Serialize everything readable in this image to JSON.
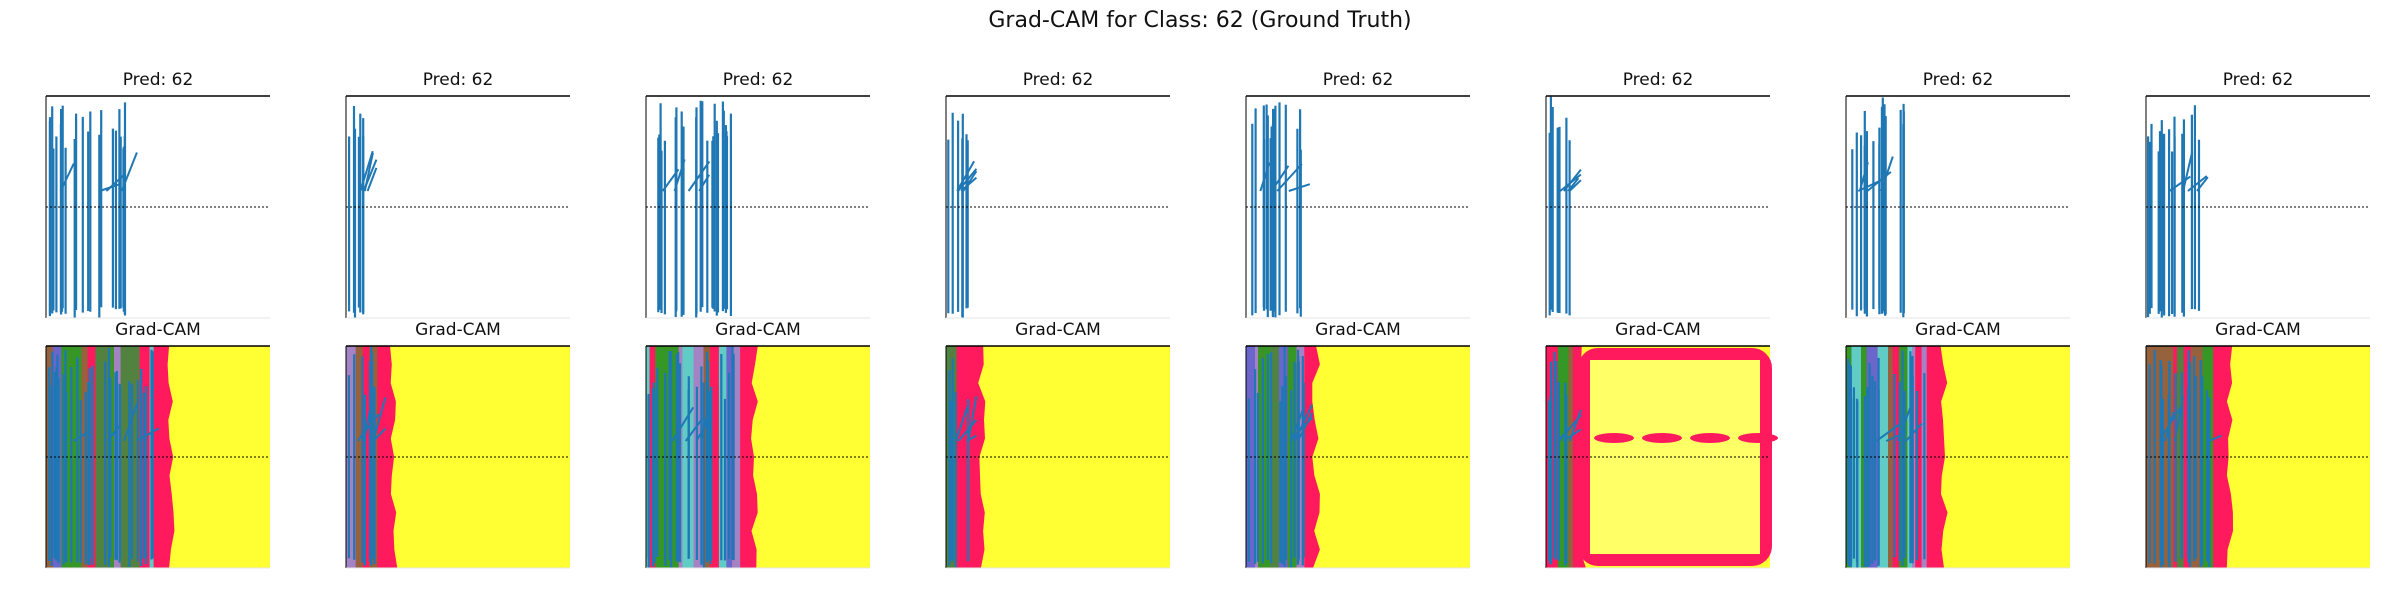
{
  "title": "Grad-CAM for Class: 62 (Ground Truth)",
  "colors": {
    "signal": "#1f77b4",
    "cam_high": "#ffff33",
    "cam_mid": "#ff1a5e",
    "cam_low_green": "#1fa51f",
    "cam_low_blue": "#5a6fd8",
    "cam_low_cyan": "#50e0d0",
    "axis": "#000000",
    "grid": "#555555"
  },
  "chart_data": [
    {
      "type": "line",
      "title": "Pred: 62",
      "row": "signal",
      "index": 0,
      "active_extent": 0.37
    },
    {
      "type": "line",
      "title": "Pred: 62",
      "row": "signal",
      "index": 1,
      "active_extent": 0.1
    },
    {
      "type": "line",
      "title": "Pred: 62",
      "row": "signal",
      "index": 2,
      "active_extent": 0.4
    },
    {
      "type": "line",
      "title": "Pred: 62",
      "row": "signal",
      "index": 3,
      "active_extent": 0.1
    },
    {
      "type": "line",
      "title": "Pred: 62",
      "row": "signal",
      "index": 4,
      "active_extent": 0.26
    },
    {
      "type": "line",
      "title": "Pred: 62",
      "row": "signal",
      "index": 5,
      "active_extent": 0.12
    },
    {
      "type": "line",
      "title": "Pred: 62",
      "row": "signal",
      "index": 6,
      "active_extent": 0.26
    },
    {
      "type": "line",
      "title": "Pred: 62",
      "row": "signal",
      "index": 7,
      "active_extent": 0.24
    },
    {
      "type": "heatmap",
      "title": "Grad-CAM",
      "row": "cam",
      "index": 0,
      "active_extent": 0.48
    },
    {
      "type": "heatmap",
      "title": "Grad-CAM",
      "row": "cam",
      "index": 1,
      "active_extent": 0.14
    },
    {
      "type": "heatmap",
      "title": "Grad-CAM",
      "row": "cam",
      "index": 2,
      "active_extent": 0.42
    },
    {
      "type": "heatmap",
      "title": "Grad-CAM",
      "row": "cam",
      "index": 3,
      "active_extent": 0.1
    },
    {
      "type": "heatmap",
      "title": "Grad-CAM",
      "row": "cam",
      "index": 4,
      "active_extent": 0.26
    },
    {
      "type": "heatmap",
      "title": "Grad-CAM",
      "row": "cam",
      "index": 5,
      "active_extent": 0.12
    },
    {
      "type": "heatmap",
      "title": "Grad-CAM",
      "row": "cam",
      "index": 6,
      "active_extent": 0.36
    },
    {
      "type": "heatmap",
      "title": "Grad-CAM",
      "row": "cam",
      "index": 7,
      "active_extent": 0.3
    }
  ]
}
